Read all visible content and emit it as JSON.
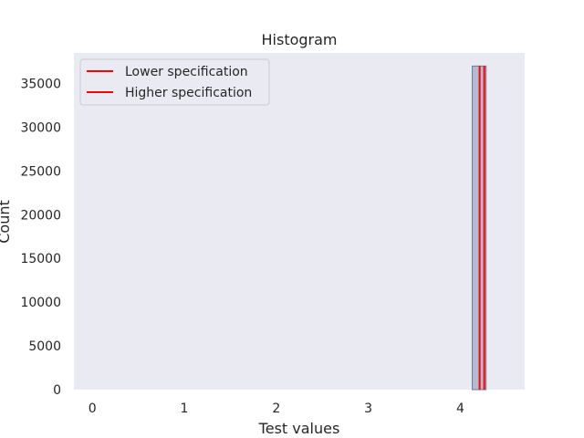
{
  "chart_data": {
    "type": "bar",
    "title": "Histogram",
    "xlabel": "Test values",
    "ylabel": "Count",
    "xlim": [
      -0.2,
      4.7
    ],
    "ylim": [
      0,
      38500
    ],
    "xticks": [
      0,
      1,
      2,
      3,
      4
    ],
    "yticks": [
      0,
      5000,
      10000,
      15000,
      20000,
      25000,
      30000,
      35000
    ],
    "grid": false,
    "bins": [
      {
        "x0": 4.13,
        "x1": 4.28,
        "count": 37000
      }
    ],
    "lines": [
      {
        "name": "Lower specification",
        "x": 4.21,
        "color": "#ff0000"
      },
      {
        "name": "Higher specification",
        "x": 4.26,
        "color": "#ff0000"
      }
    ],
    "legend_position": "top-left",
    "colors": {
      "plot_background": "#eaeaf2",
      "bar_fill": "#b3bad3",
      "bar_edge": "#6f7a96"
    }
  }
}
